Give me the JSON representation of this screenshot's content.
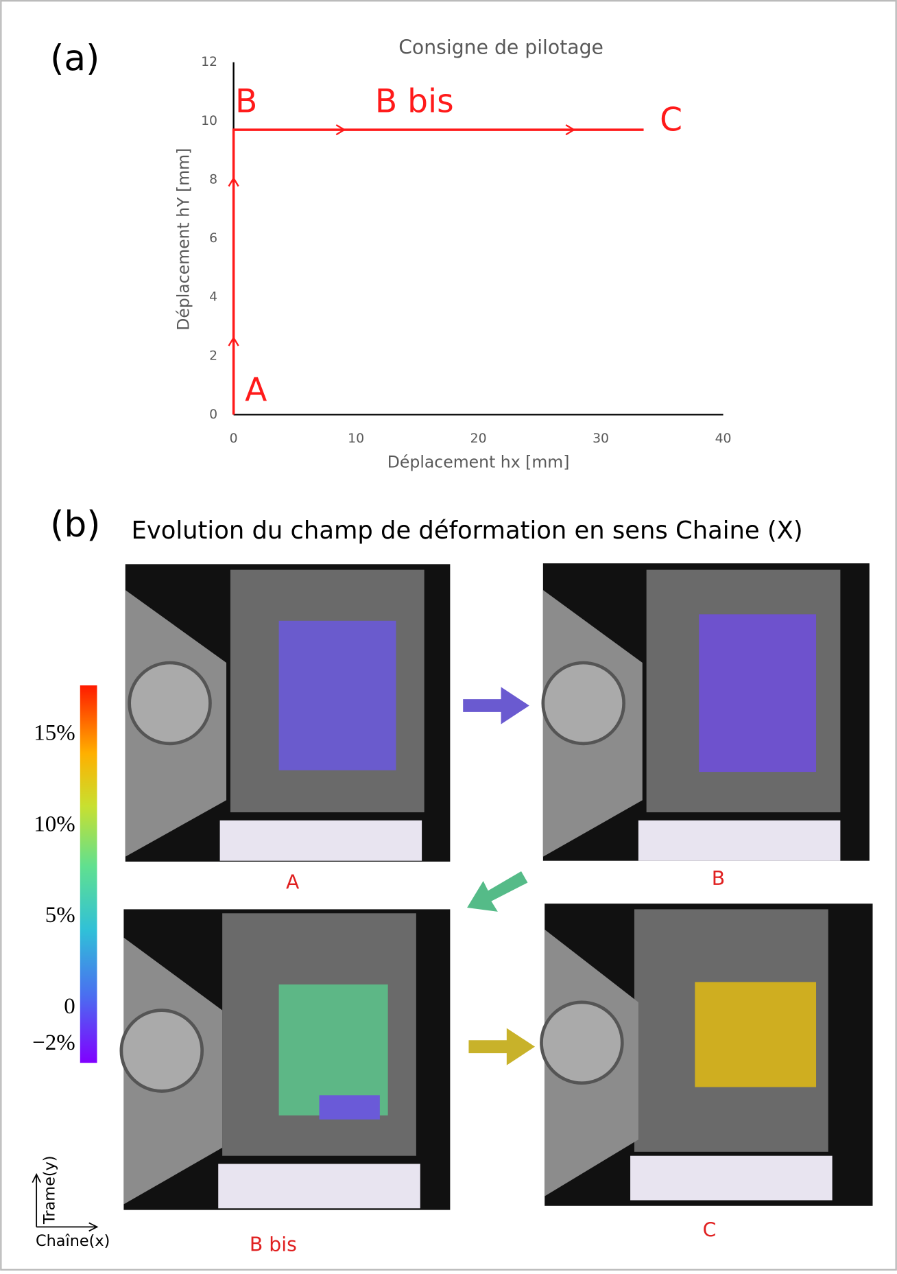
{
  "chart_data": {
    "type": "line",
    "panel_label": "(a)",
    "title": "Consigne de pilotage",
    "x_label": "Déplacement hx [mm]",
    "y_label": "Déplacement hY [mm]",
    "xlim": [
      0,
      40
    ],
    "ylim": [
      0,
      12
    ],
    "xticks": [
      0,
      10,
      20,
      30,
      40
    ],
    "yticks": [
      0,
      2,
      4,
      6,
      8,
      10,
      12
    ],
    "series": [
      {
        "name": "Consigne",
        "color": "#ff1a1a",
        "x": [
          0,
          0,
          33.5
        ],
        "values": [
          0,
          9.7,
          9.7
        ]
      }
    ],
    "annotations": [
      "A",
      "B",
      "B bis",
      "C"
    ]
  },
  "panel_b": {
    "label": "(b)",
    "title": "Evolution du champ de déformation en sens Chaine (X)",
    "captions": [
      "A",
      "B",
      "B bis",
      "C"
    ],
    "colorbar": {
      "ylim": [
        -3,
        17.7
      ],
      "ticks": [
        {
          "value": 15,
          "label": "15%"
        },
        {
          "value": 10,
          "label": "10%"
        },
        {
          "value": 5,
          "label": "5%"
        },
        0,
        {
          "value": -2,
          "label": "−2%"
        }
      ]
    },
    "axes_y": "Trame(y)",
    "axes_x": "Chaîne(x)"
  }
}
